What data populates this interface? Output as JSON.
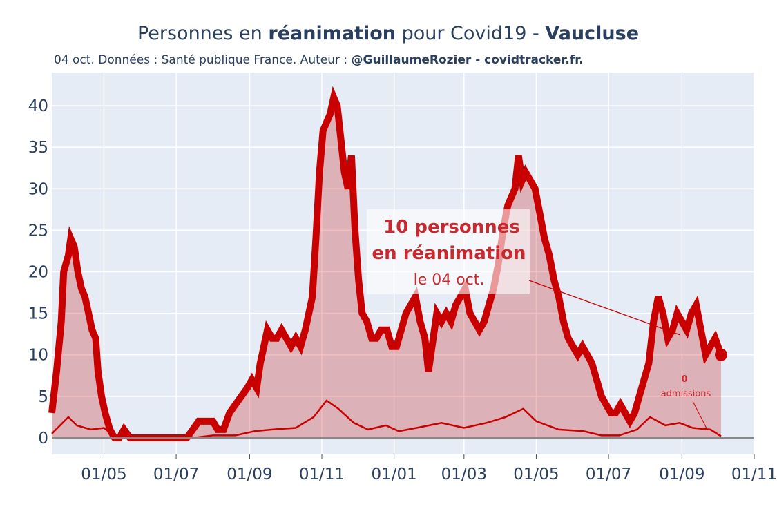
{
  "title": {
    "prefix": "Personnes en ",
    "bold1": "réanimation",
    "middle": " pour Covid19 - ",
    "bold2": "Vaucluse"
  },
  "subtitle": {
    "prefix": "04 oct. Données : Santé publique France. Auteur : ",
    "bold": "@GuillaumeRozier - covidtracker.fr."
  },
  "annotation": {
    "line1": "10 personnes",
    "line2": "en réanimation",
    "line3": "le 04 oct."
  },
  "admissions_annotation": {
    "value": "0",
    "label": "admissions"
  },
  "colors": {
    "main_line": "#c80000",
    "fill": "rgba(200,0,0,0.25)",
    "plot_bg": "#e5ecf6",
    "grid": "#ffffff",
    "text": "#2a3f5f"
  },
  "chart_data": {
    "type": "line",
    "xlim": [
      "2020-03-18",
      "2021-11-01"
    ],
    "ylim": [
      -2,
      44
    ],
    "y_ticks": [
      0,
      5,
      10,
      15,
      20,
      25,
      30,
      35,
      40
    ],
    "x_ticks": [
      {
        "date": "2020-05-01",
        "label": "01/05"
      },
      {
        "date": "2020-07-01",
        "label": "01/07"
      },
      {
        "date": "2020-09-01",
        "label": "01/09"
      },
      {
        "date": "2020-11-01",
        "label": "01/11"
      },
      {
        "date": "2021-01-01",
        "label": "01/01"
      },
      {
        "date": "2021-03-01",
        "label": "01/03"
      },
      {
        "date": "2021-05-01",
        "label": "01/05"
      },
      {
        "date": "2021-07-01",
        "label": "01/07"
      },
      {
        "date": "2021-09-01",
        "label": "01/09"
      },
      {
        "date": "2021-11-01",
        "label": "01/11"
      }
    ],
    "grid": true,
    "series": [
      {
        "role": "reanimation",
        "points": [
          [
            "2020-03-18",
            3
          ],
          [
            "2020-03-22",
            8
          ],
          [
            "2020-03-26",
            14
          ],
          [
            "2020-03-28",
            20
          ],
          [
            "2020-04-01",
            22
          ],
          [
            "2020-04-03",
            24
          ],
          [
            "2020-04-06",
            23
          ],
          [
            "2020-04-09",
            20
          ],
          [
            "2020-04-12",
            18
          ],
          [
            "2020-04-15",
            17
          ],
          [
            "2020-04-18",
            15
          ],
          [
            "2020-04-21",
            13
          ],
          [
            "2020-04-24",
            12
          ],
          [
            "2020-04-26",
            8
          ],
          [
            "2020-04-29",
            5
          ],
          [
            "2020-05-02",
            3
          ],
          [
            "2020-05-06",
            1
          ],
          [
            "2020-05-10",
            0
          ],
          [
            "2020-05-14",
            0
          ],
          [
            "2020-05-18",
            1
          ],
          [
            "2020-05-23",
            0
          ],
          [
            "2020-06-01",
            0
          ],
          [
            "2020-06-15",
            0
          ],
          [
            "2020-07-01",
            0
          ],
          [
            "2020-07-10",
            0
          ],
          [
            "2020-07-15",
            1
          ],
          [
            "2020-07-20",
            2
          ],
          [
            "2020-07-25",
            2
          ],
          [
            "2020-08-01",
            2
          ],
          [
            "2020-08-05",
            1
          ],
          [
            "2020-08-10",
            1
          ],
          [
            "2020-08-15",
            3
          ],
          [
            "2020-08-20",
            4
          ],
          [
            "2020-08-25",
            5
          ],
          [
            "2020-08-30",
            6
          ],
          [
            "2020-09-03",
            7
          ],
          [
            "2020-09-07",
            6
          ],
          [
            "2020-09-10",
            9
          ],
          [
            "2020-09-13",
            11
          ],
          [
            "2020-09-16",
            13
          ],
          [
            "2020-09-20",
            12
          ],
          [
            "2020-09-24",
            12
          ],
          [
            "2020-09-28",
            13
          ],
          [
            "2020-10-02",
            12
          ],
          [
            "2020-10-06",
            11
          ],
          [
            "2020-10-10",
            12
          ],
          [
            "2020-10-14",
            11
          ],
          [
            "2020-10-18",
            13
          ],
          [
            "2020-10-21",
            15
          ],
          [
            "2020-10-24",
            17
          ],
          [
            "2020-10-27",
            24
          ],
          [
            "2020-10-30",
            32
          ],
          [
            "2020-11-02",
            37
          ],
          [
            "2020-11-05",
            38
          ],
          [
            "2020-11-08",
            39
          ],
          [
            "2020-11-11",
            41
          ],
          [
            "2020-11-14",
            40
          ],
          [
            "2020-11-17",
            36
          ],
          [
            "2020-11-20",
            32
          ],
          [
            "2020-11-23",
            30
          ],
          [
            "2020-11-26",
            34
          ],
          [
            "2020-11-29",
            25
          ],
          [
            "2020-12-02",
            19
          ],
          [
            "2020-12-05",
            15
          ],
          [
            "2020-12-09",
            14
          ],
          [
            "2020-12-13",
            12
          ],
          [
            "2020-12-17",
            12
          ],
          [
            "2020-12-21",
            13
          ],
          [
            "2020-12-26",
            13
          ],
          [
            "2020-12-30",
            11
          ],
          [
            "2021-01-03",
            11
          ],
          [
            "2021-01-07",
            13
          ],
          [
            "2021-01-11",
            15
          ],
          [
            "2021-01-15",
            16
          ],
          [
            "2021-01-19",
            17
          ],
          [
            "2021-01-23",
            14
          ],
          [
            "2021-01-27",
            12
          ],
          [
            "2021-01-30",
            8
          ],
          [
            "2021-02-03",
            12
          ],
          [
            "2021-02-06",
            15
          ],
          [
            "2021-02-10",
            14
          ],
          [
            "2021-02-14",
            15
          ],
          [
            "2021-02-18",
            14
          ],
          [
            "2021-02-22",
            16
          ],
          [
            "2021-02-26",
            17
          ],
          [
            "2021-03-02",
            18
          ],
          [
            "2021-03-06",
            15
          ],
          [
            "2021-03-10",
            14
          ],
          [
            "2021-03-14",
            13
          ],
          [
            "2021-03-18",
            14
          ],
          [
            "2021-03-22",
            16
          ],
          [
            "2021-03-26",
            18
          ],
          [
            "2021-03-30",
            21
          ],
          [
            "2021-04-03",
            25
          ],
          [
            "2021-04-07",
            28
          ],
          [
            "2021-04-10",
            29
          ],
          [
            "2021-04-13",
            30
          ],
          [
            "2021-04-16",
            34
          ],
          [
            "2021-04-19",
            31
          ],
          [
            "2021-04-22",
            32
          ],
          [
            "2021-04-26",
            31
          ],
          [
            "2021-04-30",
            30
          ],
          [
            "2021-05-04",
            27
          ],
          [
            "2021-05-08",
            24
          ],
          [
            "2021-05-12",
            22
          ],
          [
            "2021-05-16",
            19
          ],
          [
            "2021-05-20",
            17
          ],
          [
            "2021-05-24",
            14
          ],
          [
            "2021-05-28",
            12
          ],
          [
            "2021-06-01",
            11
          ],
          [
            "2021-06-05",
            10
          ],
          [
            "2021-06-09",
            11
          ],
          [
            "2021-06-13",
            10
          ],
          [
            "2021-06-17",
            9
          ],
          [
            "2021-06-21",
            7
          ],
          [
            "2021-06-25",
            5
          ],
          [
            "2021-06-29",
            4
          ],
          [
            "2021-07-03",
            3
          ],
          [
            "2021-07-07",
            3
          ],
          [
            "2021-07-11",
            4
          ],
          [
            "2021-07-15",
            3
          ],
          [
            "2021-07-19",
            2
          ],
          [
            "2021-07-23",
            3
          ],
          [
            "2021-07-27",
            5
          ],
          [
            "2021-07-31",
            7
          ],
          [
            "2021-08-04",
            9
          ],
          [
            "2021-08-08",
            14
          ],
          [
            "2021-08-12",
            17
          ],
          [
            "2021-08-16",
            15
          ],
          [
            "2021-08-20",
            12
          ],
          [
            "2021-08-24",
            13
          ],
          [
            "2021-08-28",
            15
          ],
          [
            "2021-09-01",
            14
          ],
          [
            "2021-09-05",
            13
          ],
          [
            "2021-09-09",
            15
          ],
          [
            "2021-09-13",
            16
          ],
          [
            "2021-09-17",
            13
          ],
          [
            "2021-09-21",
            10
          ],
          [
            "2021-09-25",
            11
          ],
          [
            "2021-09-29",
            12
          ],
          [
            "2021-10-04",
            10
          ]
        ]
      },
      {
        "role": "admissions_smoothed",
        "points": [
          [
            "2020-03-18",
            0.5
          ],
          [
            "2020-03-25",
            1.5
          ],
          [
            "2020-04-01",
            2.5
          ],
          [
            "2020-04-08",
            1.5
          ],
          [
            "2020-04-20",
            1.0
          ],
          [
            "2020-05-01",
            1.2
          ],
          [
            "2020-05-10",
            0.2
          ],
          [
            "2020-06-01",
            0
          ],
          [
            "2020-07-15",
            0
          ],
          [
            "2020-08-01",
            0.3
          ],
          [
            "2020-08-20",
            0.3
          ],
          [
            "2020-09-05",
            0.8
          ],
          [
            "2020-09-20",
            1.0
          ],
          [
            "2020-10-10",
            1.2
          ],
          [
            "2020-10-25",
            2.5
          ],
          [
            "2020-11-05",
            4.5
          ],
          [
            "2020-11-15",
            3.5
          ],
          [
            "2020-11-28",
            1.8
          ],
          [
            "2020-12-10",
            1.0
          ],
          [
            "2020-12-25",
            1.5
          ],
          [
            "2021-01-05",
            0.8
          ],
          [
            "2021-01-20",
            1.2
          ],
          [
            "2021-02-10",
            1.8
          ],
          [
            "2021-03-01",
            1.2
          ],
          [
            "2021-03-20",
            1.8
          ],
          [
            "2021-04-05",
            2.5
          ],
          [
            "2021-04-20",
            3.5
          ],
          [
            "2021-05-01",
            2.0
          ],
          [
            "2021-05-20",
            1.0
          ],
          [
            "2021-06-10",
            0.8
          ],
          [
            "2021-06-25",
            0.3
          ],
          [
            "2021-07-10",
            0.3
          ],
          [
            "2021-07-25",
            1.0
          ],
          [
            "2021-08-05",
            2.5
          ],
          [
            "2021-08-18",
            1.5
          ],
          [
            "2021-08-30",
            1.8
          ],
          [
            "2021-09-10",
            1.2
          ],
          [
            "2021-09-25",
            1.0
          ],
          [
            "2021-10-04",
            0.2
          ]
        ]
      }
    ]
  }
}
